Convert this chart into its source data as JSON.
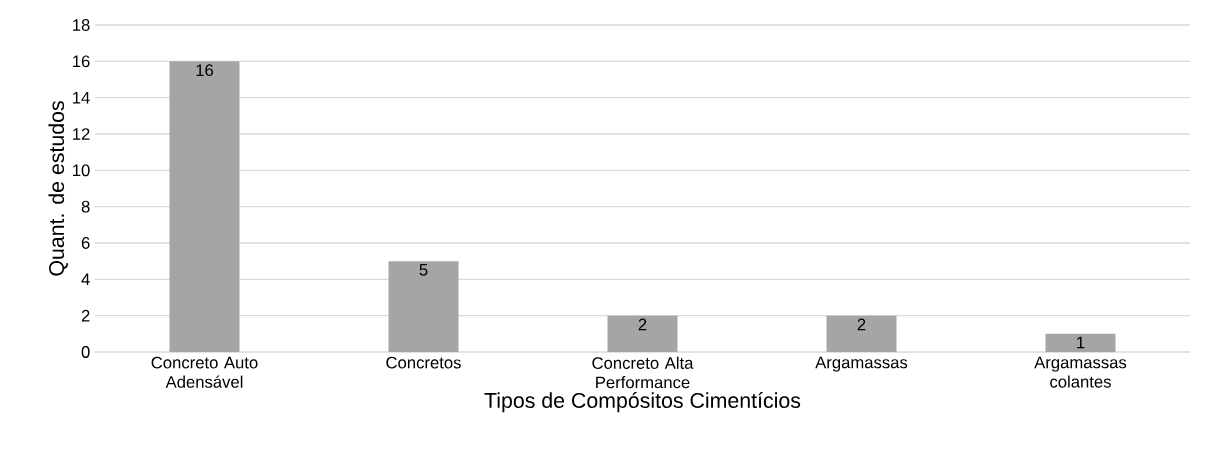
{
  "chart_data": {
    "type": "bar",
    "xlabel": "Tipos de Compósitos Cimentícios",
    "ylabel": "Quant. de estudos",
    "categories": [
      "Concreto Auto Adensável",
      "Concretos",
      "Concreto Alta Performance",
      "Argamassas",
      "Argamassas colantes"
    ],
    "values": [
      16,
      5,
      2,
      2,
      1
    ],
    "color": "#a5a5a5",
    "ylim": [
      0,
      18
    ],
    "yticks": [
      0,
      2,
      4,
      6,
      8,
      10,
      12,
      14,
      16,
      18
    ],
    "grid": "y",
    "data_labels": true
  }
}
